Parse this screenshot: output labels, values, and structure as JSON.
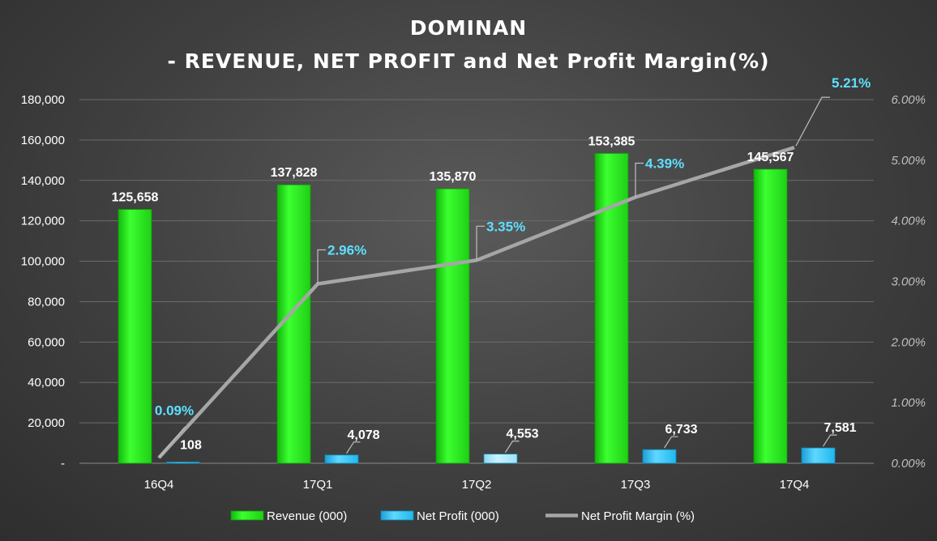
{
  "chart_data": {
    "type": "bar",
    "title": "DOMINAN",
    "subtitle": "- REVENUE, NET PROFIT and Net Profit Margin(%)",
    "categories": [
      "16Q4",
      "17Q1",
      "17Q2",
      "17Q3",
      "17Q4"
    ],
    "series": [
      {
        "name": "Revenue (000)",
        "type": "bar",
        "axis": "left",
        "color": "#22e01a",
        "values": [
          125658,
          137828,
          135870,
          153385,
          145567
        ],
        "labels": [
          "125,658",
          "137,828",
          "135,870",
          "153,385",
          "145,567"
        ]
      },
      {
        "name": "Net Profit  (000)",
        "type": "bar",
        "axis": "left",
        "color": "#1fb8ee",
        "values": [
          108,
          4078,
          4553,
          6733,
          7581
        ],
        "labels": [
          "108",
          "4,078",
          "4,553",
          "6,733",
          "7,581"
        ]
      },
      {
        "name": "Net Profit Margin (%)",
        "type": "line",
        "axis": "right",
        "color": "#a6a6a6",
        "values": [
          0.09,
          2.96,
          3.35,
          4.39,
          5.21
        ],
        "labels": [
          "0.09%",
          "2.96%",
          "3.35%",
          "4.39%",
          "5.21%"
        ]
      }
    ],
    "ylim": [
      0,
      180000
    ],
    "yticks": [
      "-",
      "20,000",
      "40,000",
      "60,000",
      "80,000",
      "100,000",
      "120,000",
      "140,000",
      "160,000",
      "180,000"
    ],
    "y2lim": [
      0,
      6
    ],
    "y2ticks": [
      "0.00%",
      "1.00%",
      "2.00%",
      "3.00%",
      "4.00%",
      "5.00%",
      "6.00%"
    ],
    "grid": true,
    "legend_position": "bottom",
    "colors": {
      "background": "#3f3f3f",
      "grid": "#6b6b6b",
      "label_text": "#ffffff",
      "margin_label_text": "#5ee0ff",
      "right_axis_text": "#bfbfbf"
    }
  }
}
